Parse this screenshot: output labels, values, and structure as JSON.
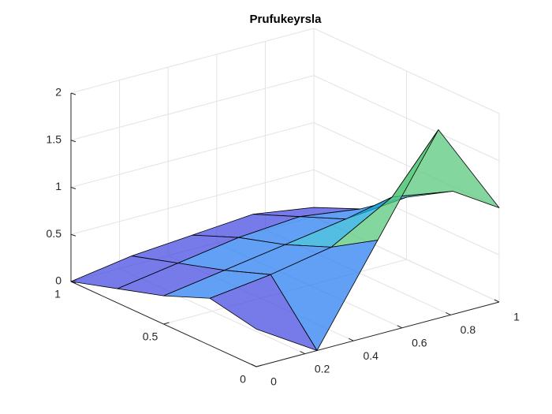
{
  "chart_data": {
    "type": "surface",
    "title": "Prufukeyrsla",
    "x": [
      0,
      0.25,
      0.5,
      0.75,
      1
    ],
    "y": [
      0,
      0.25,
      0.5,
      0.75,
      1
    ],
    "z": [
      [
        0.4,
        0,
        1,
        2,
        1
      ],
      [
        0.5,
        0.58,
        0.7,
        1.06,
        0.95
      ],
      [
        0.3,
        0.4,
        0.5,
        0.6,
        0.66
      ],
      [
        0.15,
        0.25,
        0.35,
        0.4,
        0.31
      ],
      [
        0,
        0.1,
        0.15,
        0.2,
        0.1
      ]
    ],
    "xlim": [
      0,
      1
    ],
    "ylim": [
      0,
      1
    ],
    "zlim": [
      0,
      2
    ],
    "xticks": [
      0,
      0.2,
      0.4,
      0.6,
      0.8,
      1
    ],
    "yticks": [
      0,
      0.5,
      1
    ],
    "zticks": [
      0,
      0.5,
      1,
      1.5,
      2
    ],
    "grid": true,
    "colormap": [
      "#3e26a8",
      "#4a4fe3",
      "#2d80f3",
      "#1ba7d8",
      "#1ac0b3",
      "#5ac97e",
      "#b7bd45",
      "#f5c42e",
      "#f9fb15"
    ]
  }
}
